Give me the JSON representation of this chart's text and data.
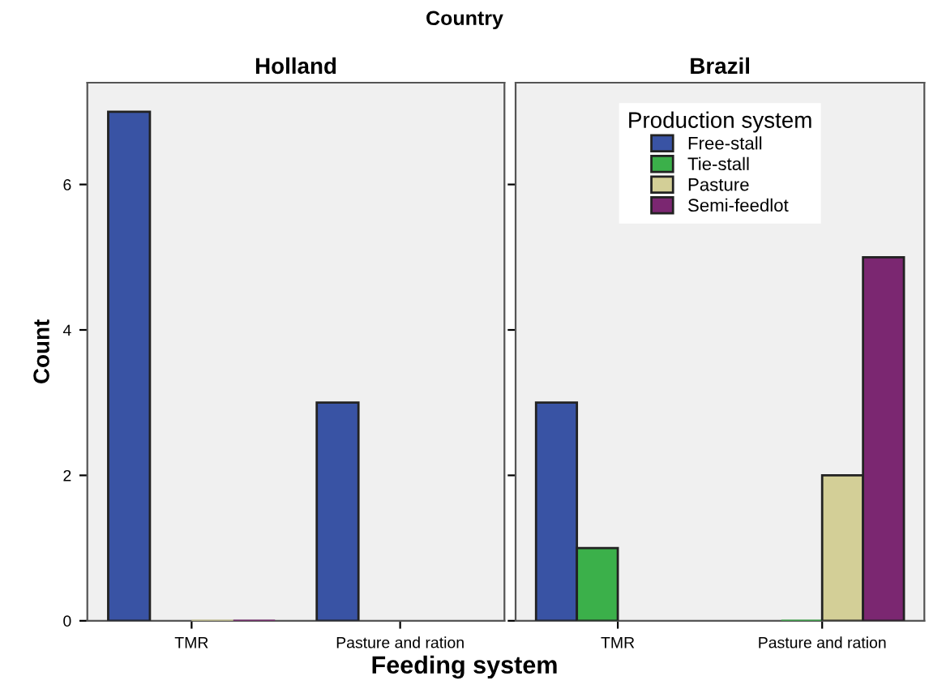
{
  "chart_data": [
    {
      "type": "bar",
      "title": "Holland",
      "annotations": [
        "Country"
      ],
      "xlabel": "Feeding system",
      "ylabel": "Count",
      "categories": [
        "TMR",
        "Pasture and ration"
      ],
      "ylim": [
        0,
        7.4
      ],
      "yticks": [
        0,
        2,
        4,
        6
      ],
      "grid": false,
      "series": [
        {
          "color": "#3953a4",
          "values": [
            7,
            3
          ]
        },
        {
          "color": "#3bb04a",
          "values": [
            null,
            null
          ]
        },
        {
          "color": "#d3cf97",
          "values": [
            0,
            null
          ]
        },
        {
          "color": "#7b2771",
          "values": [
            0,
            null
          ]
        }
      ]
    },
    {
      "type": "bar",
      "title": "Brazil",
      "categories": [
        "TMR",
        "Pasture and ration"
      ],
      "ylim": [
        0,
        7.4
      ],
      "yticks": [
        0,
        2,
        4,
        6
      ],
      "tick_labels": "x",
      "grid": false,
      "legend": "top",
      "legend_title": "Production system",
      "series": [
        {
          "name": "Free-stall",
          "color": "#3953a4",
          "values": [
            3,
            null
          ]
        },
        {
          "name": "Tie-stall",
          "color": "#3bb04a",
          "values": [
            1,
            0
          ]
        },
        {
          "name": "Pasture",
          "color": "#d3cf97",
          "values": [
            null,
            2
          ]
        },
        {
          "name": "Semi-feedlot",
          "color": "#7b2771",
          "values": [
            null,
            5
          ]
        }
      ]
    }
  ]
}
